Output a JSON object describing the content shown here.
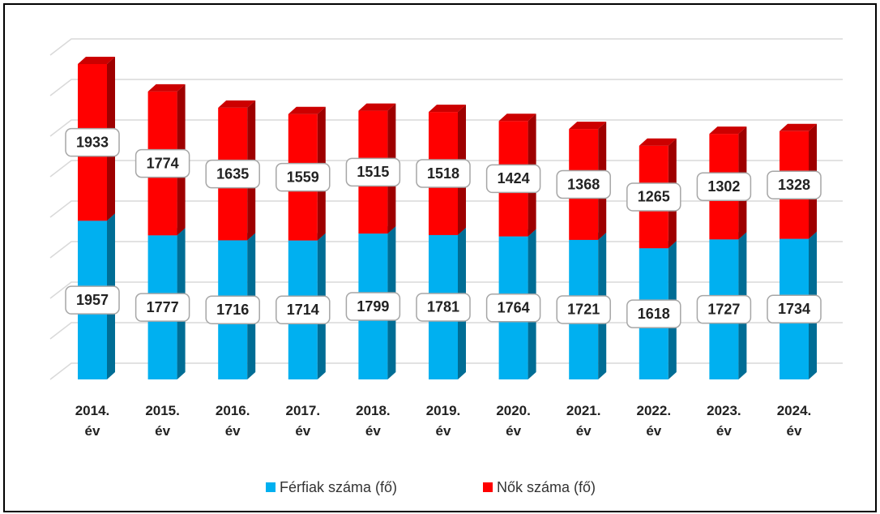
{
  "chart_data": {
    "type": "bar3d_stacked",
    "categories": [
      "2014. év",
      "2015. év",
      "2016. év",
      "2017. év",
      "2018. év",
      "2019. év",
      "2020. év",
      "2021. év",
      "2022. év",
      "2023. év",
      "2024. év"
    ],
    "series": [
      {
        "name": "Férfiak száma (fő)",
        "color": "#00b0f0",
        "values": [
          1957,
          1777,
          1716,
          1714,
          1799,
          1781,
          1764,
          1721,
          1618,
          1727,
          1734
        ]
      },
      {
        "name": "Nők száma (fő)",
        "color": "#ff0000",
        "values": [
          1933,
          1774,
          1635,
          1559,
          1515,
          1518,
          1424,
          1368,
          1265,
          1302,
          1328
        ]
      }
    ],
    "ylim": [
      0,
      4000
    ],
    "yticks": [
      0,
      500,
      1000,
      1500,
      2000,
      2500,
      3000,
      3500,
      4000
    ],
    "grid": true,
    "legend": "bottom"
  }
}
